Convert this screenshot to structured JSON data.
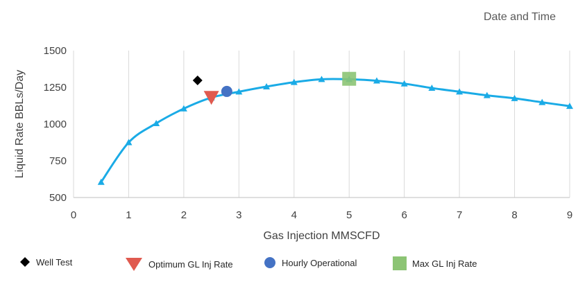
{
  "header": {
    "text": "Date and Time"
  },
  "chart_data": {
    "type": "line",
    "title": "",
    "xlabel": "Gas Injection MMSCFD",
    "ylabel": "Liquid Rate BBLs/Day",
    "xlim": [
      0,
      9
    ],
    "ylim": [
      500,
      1500
    ],
    "x_ticks": [
      "0",
      "1",
      "2",
      "3",
      "4",
      "5",
      "6",
      "7",
      "8",
      "9"
    ],
    "y_ticks": [
      "500",
      "750",
      "1000",
      "1250",
      "1500"
    ],
    "grid": "vertical",
    "series": [
      {
        "color": "#1aabe6",
        "marker": "triangle",
        "points": [
          [
            0.5,
            605
          ],
          [
            1.0,
            875
          ],
          [
            1.5,
            1005
          ],
          [
            2.0,
            1105
          ],
          [
            2.5,
            1180
          ],
          [
            3.0,
            1220
          ],
          [
            3.5,
            1255
          ],
          [
            4.0,
            1285
          ],
          [
            4.5,
            1305
          ],
          [
            5.0,
            1305
          ],
          [
            5.5,
            1295
          ],
          [
            6.0,
            1275
          ],
          [
            6.5,
            1245
          ],
          [
            7.0,
            1220
          ],
          [
            7.5,
            1195
          ],
          [
            8.0,
            1175
          ],
          [
            8.5,
            1148
          ],
          [
            9.0,
            1122
          ]
        ]
      },
      {
        "name": "Well Test",
        "color": "#000000",
        "marker": "diamond",
        "points": [
          [
            2.25,
            1297
          ]
        ]
      },
      {
        "name": "Optimum GL Inj Rate",
        "color": "#e05a4f",
        "marker": "triangle-down",
        "points": [
          [
            2.5,
            1178
          ]
        ]
      },
      {
        "name": "Hourly Operational",
        "color": "#4472c4",
        "marker": "circle",
        "points": [
          [
            2.78,
            1222
          ]
        ]
      },
      {
        "name": "Max GL Inj Rate",
        "color": "#8cc474",
        "marker": "square",
        "points": [
          [
            5.0,
            1308
          ]
        ]
      }
    ],
    "legend_position": "bottom"
  },
  "legend": [
    {
      "label": "Well Test",
      "color": "#000000",
      "icon": "diamond-icon"
    },
    {
      "label": "Optimum GL Inj Rate",
      "color": "#e05a4f",
      "icon": "triangle-down-icon"
    },
    {
      "label": "Hourly Operational",
      "color": "#4472c4",
      "icon": "circle-icon"
    },
    {
      "label": "Max GL Inj Rate",
      "color": "#8cc474",
      "icon": "square-icon"
    }
  ]
}
